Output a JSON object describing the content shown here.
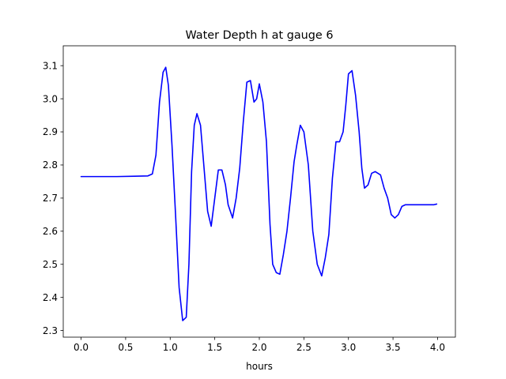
{
  "chart_data": {
    "type": "line",
    "title": "Water Depth h at gauge 6",
    "xlabel": "hours",
    "ylabel": "",
    "xlim": [
      -0.2,
      4.2
    ],
    "ylim": [
      2.28,
      3.16
    ],
    "xticks": [
      0.0,
      0.5,
      1.0,
      1.5,
      2.0,
      2.5,
      3.0,
      3.5,
      4.0
    ],
    "xtick_labels": [
      "0.0",
      "0.5",
      "1.0",
      "1.5",
      "2.0",
      "2.5",
      "3.0",
      "3.5",
      "4.0"
    ],
    "yticks": [
      2.3,
      2.4,
      2.5,
      2.6,
      2.7,
      2.8,
      2.9,
      3.0,
      3.1
    ],
    "ytick_labels": [
      "2.3",
      "2.4",
      "2.5",
      "2.6",
      "2.7",
      "2.8",
      "2.9",
      "3.0",
      "3.1"
    ],
    "grid": false,
    "legend": "none",
    "series": [
      {
        "color": "#0000ff",
        "x": [
          0.0,
          0.2,
          0.4,
          0.6,
          0.75,
          0.8,
          0.84,
          0.88,
          0.92,
          0.95,
          0.98,
          1.02,
          1.06,
          1.1,
          1.14,
          1.18,
          1.21,
          1.24,
          1.27,
          1.3,
          1.34,
          1.38,
          1.42,
          1.46,
          1.5,
          1.54,
          1.58,
          1.62,
          1.65,
          1.7,
          1.74,
          1.78,
          1.82,
          1.86,
          1.9,
          1.94,
          1.97,
          2.0,
          2.04,
          2.08,
          2.12,
          2.15,
          2.19,
          2.23,
          2.27,
          2.31,
          2.35,
          2.39,
          2.42,
          2.46,
          2.5,
          2.55,
          2.6,
          2.65,
          2.7,
          2.74,
          2.78,
          2.82,
          2.86,
          2.9,
          2.94,
          2.97,
          3.0,
          3.04,
          3.08,
          3.12,
          3.15,
          3.18,
          3.22,
          3.26,
          3.3,
          3.33,
          3.36,
          3.4,
          3.44,
          3.48,
          3.52,
          3.56,
          3.6,
          3.64,
          3.68,
          3.72,
          3.76,
          3.8,
          3.84,
          3.88,
          3.92,
          3.96,
          3.99
        ],
        "y": [
          2.765,
          2.765,
          2.765,
          2.766,
          2.767,
          2.773,
          2.83,
          2.99,
          3.08,
          3.095,
          3.04,
          2.86,
          2.65,
          2.43,
          2.33,
          2.34,
          2.5,
          2.78,
          2.92,
          2.955,
          2.92,
          2.79,
          2.66,
          2.615,
          2.7,
          2.785,
          2.785,
          2.74,
          2.68,
          2.64,
          2.7,
          2.79,
          2.93,
          3.05,
          3.055,
          2.99,
          3.0,
          3.045,
          2.99,
          2.87,
          2.62,
          2.5,
          2.475,
          2.47,
          2.53,
          2.6,
          2.7,
          2.81,
          2.86,
          2.92,
          2.9,
          2.8,
          2.6,
          2.5,
          2.465,
          2.52,
          2.59,
          2.76,
          2.87,
          2.87,
          2.9,
          2.98,
          3.075,
          3.085,
          3.01,
          2.9,
          2.79,
          2.73,
          2.74,
          2.775,
          2.78,
          2.775,
          2.77,
          2.73,
          2.7,
          2.65,
          2.64,
          2.65,
          2.675,
          2.68,
          2.68,
          2.68,
          2.68,
          2.68,
          2.68,
          2.68,
          2.68,
          2.68,
          2.682
        ]
      }
    ]
  }
}
